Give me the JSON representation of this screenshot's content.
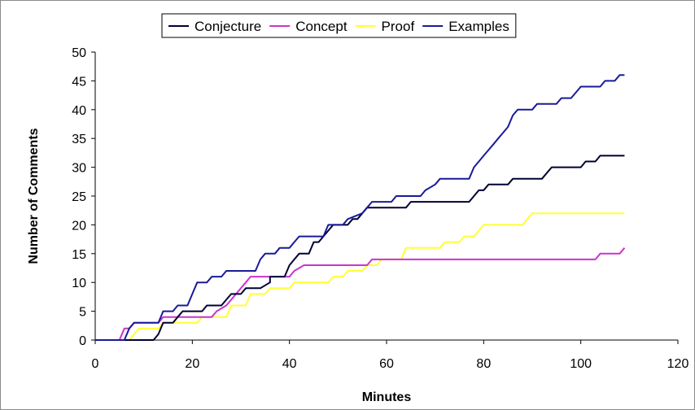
{
  "chart_data": {
    "type": "line",
    "xlabel": "Minutes",
    "ylabel": "Number of Comments",
    "xlim": [
      0,
      120
    ],
    "ylim": [
      0,
      50
    ],
    "xticks": [
      0,
      20,
      40,
      60,
      80,
      100,
      120
    ],
    "yticks": [
      0,
      5,
      10,
      15,
      20,
      25,
      30,
      35,
      40,
      45,
      50
    ],
    "grid": false,
    "legend_position": "top",
    "series": [
      {
        "name": "Conjecture",
        "color": "#000033",
        "points": [
          [
            0,
            0
          ],
          [
            12,
            0
          ],
          [
            13,
            1
          ],
          [
            14,
            3
          ],
          [
            16,
            3
          ],
          [
            17,
            4
          ],
          [
            18,
            5
          ],
          [
            22,
            5
          ],
          [
            23,
            6
          ],
          [
            26,
            6
          ],
          [
            27,
            7
          ],
          [
            28,
            8
          ],
          [
            30,
            8
          ],
          [
            31,
            9
          ],
          [
            34,
            9
          ],
          [
            36,
            10
          ],
          [
            36,
            11
          ],
          [
            39,
            11
          ],
          [
            40,
            13
          ],
          [
            41,
            14
          ],
          [
            42,
            15
          ],
          [
            44,
            15
          ],
          [
            45,
            17
          ],
          [
            46,
            17
          ],
          [
            47,
            18
          ],
          [
            48,
            19
          ],
          [
            49,
            20
          ],
          [
            52,
            20
          ],
          [
            53,
            21
          ],
          [
            54,
            21
          ],
          [
            55,
            22
          ],
          [
            56,
            23
          ],
          [
            64,
            23
          ],
          [
            65,
            24
          ],
          [
            77,
            24
          ],
          [
            78,
            25
          ],
          [
            79,
            26
          ],
          [
            80,
            26
          ],
          [
            81,
            27
          ],
          [
            85,
            27
          ],
          [
            86,
            28
          ],
          [
            92,
            28
          ],
          [
            93,
            29
          ],
          [
            94,
            30
          ],
          [
            100,
            30
          ],
          [
            101,
            31
          ],
          [
            103,
            31
          ],
          [
            104,
            32
          ],
          [
            109,
            32
          ]
        ]
      },
      {
        "name": "Concept",
        "color": "#cc33cc",
        "points": [
          [
            0,
            0
          ],
          [
            5,
            0
          ],
          [
            6,
            2
          ],
          [
            7,
            2
          ],
          [
            8,
            3
          ],
          [
            13,
            3
          ],
          [
            14,
            4
          ],
          [
            24,
            4
          ],
          [
            25,
            5
          ],
          [
            27,
            6
          ],
          [
            28,
            7
          ],
          [
            29,
            8
          ],
          [
            31,
            10
          ],
          [
            32,
            11
          ],
          [
            40,
            11
          ],
          [
            41,
            12
          ],
          [
            43,
            13
          ],
          [
            56,
            13
          ],
          [
            57,
            14
          ],
          [
            103,
            14
          ],
          [
            104,
            15
          ],
          [
            108,
            15
          ],
          [
            109,
            16
          ]
        ]
      },
      {
        "name": "Proof",
        "color": "#ffff33",
        "points": [
          [
            0,
            0
          ],
          [
            7,
            0
          ],
          [
            8,
            1
          ],
          [
            9,
            2
          ],
          [
            13,
            2
          ],
          [
            14,
            3
          ],
          [
            21,
            3
          ],
          [
            22,
            4
          ],
          [
            27,
            4
          ],
          [
            28,
            6
          ],
          [
            31,
            6
          ],
          [
            32,
            8
          ],
          [
            35,
            8
          ],
          [
            36,
            9
          ],
          [
            40,
            9
          ],
          [
            41,
            10
          ],
          [
            48,
            10
          ],
          [
            49,
            11
          ],
          [
            51,
            11
          ],
          [
            52,
            12
          ],
          [
            55,
            12
          ],
          [
            56,
            13
          ],
          [
            58,
            13
          ],
          [
            59,
            14
          ],
          [
            63,
            14
          ],
          [
            64,
            16
          ],
          [
            71,
            16
          ],
          [
            72,
            17
          ],
          [
            75,
            17
          ],
          [
            76,
            18
          ],
          [
            78,
            18
          ],
          [
            79,
            19
          ],
          [
            80,
            20
          ],
          [
            88,
            20
          ],
          [
            89,
            21
          ],
          [
            90,
            22
          ],
          [
            109,
            22
          ]
        ]
      },
      {
        "name": "Examples",
        "color": "#1a1a99",
        "points": [
          [
            0,
            0
          ],
          [
            6,
            0
          ],
          [
            7,
            2
          ],
          [
            8,
            3
          ],
          [
            13,
            3
          ],
          [
            14,
            5
          ],
          [
            16,
            5
          ],
          [
            17,
            6
          ],
          [
            19,
            6
          ],
          [
            20,
            8
          ],
          [
            21,
            10
          ],
          [
            23,
            10
          ],
          [
            24,
            11
          ],
          [
            26,
            11
          ],
          [
            27,
            12
          ],
          [
            33,
            12
          ],
          [
            34,
            14
          ],
          [
            35,
            15
          ],
          [
            37,
            15
          ],
          [
            38,
            16
          ],
          [
            40,
            16
          ],
          [
            41,
            17
          ],
          [
            42,
            18
          ],
          [
            47,
            18
          ],
          [
            48,
            20
          ],
          [
            51,
            20
          ],
          [
            52,
            21
          ],
          [
            55,
            22
          ],
          [
            56,
            23
          ],
          [
            57,
            24
          ],
          [
            61,
            24
          ],
          [
            62,
            25
          ],
          [
            67,
            25
          ],
          [
            68,
            26
          ],
          [
            70,
            27
          ],
          [
            71,
            28
          ],
          [
            77,
            28
          ],
          [
            78,
            30
          ],
          [
            79,
            31
          ],
          [
            80,
            32
          ],
          [
            81,
            33
          ],
          [
            82,
            34
          ],
          [
            83,
            35
          ],
          [
            84,
            36
          ],
          [
            85,
            37
          ],
          [
            86,
            39
          ],
          [
            87,
            40
          ],
          [
            90,
            40
          ],
          [
            91,
            41
          ],
          [
            95,
            41
          ],
          [
            96,
            42
          ],
          [
            98,
            42
          ],
          [
            99,
            43
          ],
          [
            100,
            44
          ],
          [
            104,
            44
          ],
          [
            105,
            45
          ],
          [
            107,
            45
          ],
          [
            108,
            46
          ],
          [
            109,
            46
          ]
        ]
      }
    ]
  }
}
